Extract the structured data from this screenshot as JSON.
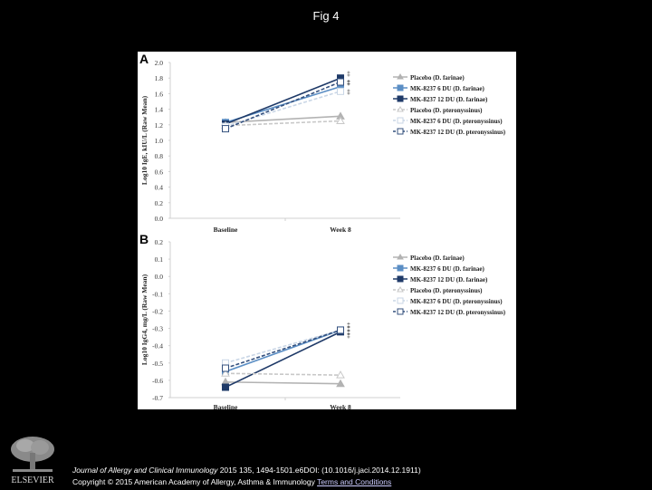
{
  "page": {
    "title": "Fig 4"
  },
  "footer": {
    "journal": "Journal of Allergy and Clinical Immunology",
    "citation": " 2015 135, 1494-1501.e6DOI: (10.1016/j.jaci.2014.12.1911)",
    "copyright": "Copyright © 2015 American Academy of Allergy, Asthma & Immunology",
    "terms_link": "Terms and Conditions",
    "publisher_logo": "ELSEVIER"
  },
  "colors": {
    "placebo_df": "#b3b3b3",
    "mk6_df": "#5b8ec4",
    "mk12_df": "#1f3a68",
    "placebo_dp": "#c8c8c8",
    "mk6_dp": "#c9d6e6",
    "mk12_dp": "#34507e"
  },
  "chart_data": [
    {
      "panel": "A",
      "type": "line",
      "title": "",
      "xlabel": "",
      "ylabel": "Log10 IgE, kIU/L (Raw Mean)",
      "categories": [
        "Baseline",
        "Week 8"
      ],
      "ylim": [
        0.0,
        2.0
      ],
      "yticks": [
        "2.0",
        "1.8",
        "1.6",
        "1.4",
        "1.2",
        "1.0",
        "0.8",
        "0.6",
        "0.4",
        "0.2",
        "0.0"
      ],
      "grid": false,
      "legend_position": "right",
      "series": [
        {
          "name": "Placebo (D. farinae)",
          "values": [
            1.23,
            1.31
          ],
          "style": "solid",
          "marker": "triangle"
        },
        {
          "name": "MK-8237 6 DU (D. farinae)",
          "values": [
            1.23,
            1.69
          ],
          "style": "solid",
          "marker": "square"
        },
        {
          "name": "MK-8237 12 DU (D. farinae)",
          "values": [
            1.21,
            1.8
          ],
          "style": "solid",
          "marker": "square"
        },
        {
          "name": "Placebo (D. pteronyssinus)",
          "values": [
            1.19,
            1.25
          ],
          "style": "dashed",
          "marker": "triangle-open"
        },
        {
          "name": "MK-8237 6 DU (D. pteronyssinus)",
          "values": [
            1.18,
            1.63
          ],
          "style": "dashed",
          "marker": "square-open"
        },
        {
          "name": "MK-8237 12 DU (D. pteronyssinus)",
          "values": [
            1.15,
            1.75
          ],
          "style": "dashed",
          "marker": "square-open"
        }
      ],
      "annotations": [
        "‡",
        "‡",
        "‡",
        "‡"
      ]
    },
    {
      "panel": "B",
      "type": "line",
      "title": "",
      "xlabel": "",
      "ylabel": "Log10 IgG4, mg/L (Raw Mean)",
      "categories": [
        "Baseline",
        "Week 8"
      ],
      "ylim": [
        -0.7,
        0.2
      ],
      "yticks": [
        "0.2",
        "0.1",
        "0.0",
        "-0.1",
        "-0.2",
        "-0.3",
        "-0.4",
        "-0.5",
        "-0.6",
        "-0.7"
      ],
      "grid": false,
      "legend_position": "right",
      "series": [
        {
          "name": "Placebo (D. farinae)",
          "values": [
            -0.61,
            -0.62
          ],
          "style": "solid",
          "marker": "triangle"
        },
        {
          "name": "MK-8237 6 DU (D. farinae)",
          "values": [
            -0.55,
            -0.31
          ],
          "style": "solid",
          "marker": "square"
        },
        {
          "name": "MK-8237 12 DU (D. farinae)",
          "values": [
            -0.64,
            -0.32
          ],
          "style": "solid",
          "marker": "square"
        },
        {
          "name": "Placebo (D. pteronyssinus)",
          "values": [
            -0.56,
            -0.57
          ],
          "style": "dashed",
          "marker": "triangle-open"
        },
        {
          "name": "MK-8237 6 DU (D. pteronyssinus)",
          "values": [
            -0.5,
            -0.31
          ],
          "style": "dashed",
          "marker": "square-open"
        },
        {
          "name": "MK-8237 12 DU (D. pteronyssinus)",
          "values": [
            -0.53,
            -0.31
          ],
          "style": "dashed",
          "marker": "square-open"
        }
      ],
      "annotations": [
        "‡",
        "‡",
        "‡",
        "‡"
      ]
    }
  ]
}
